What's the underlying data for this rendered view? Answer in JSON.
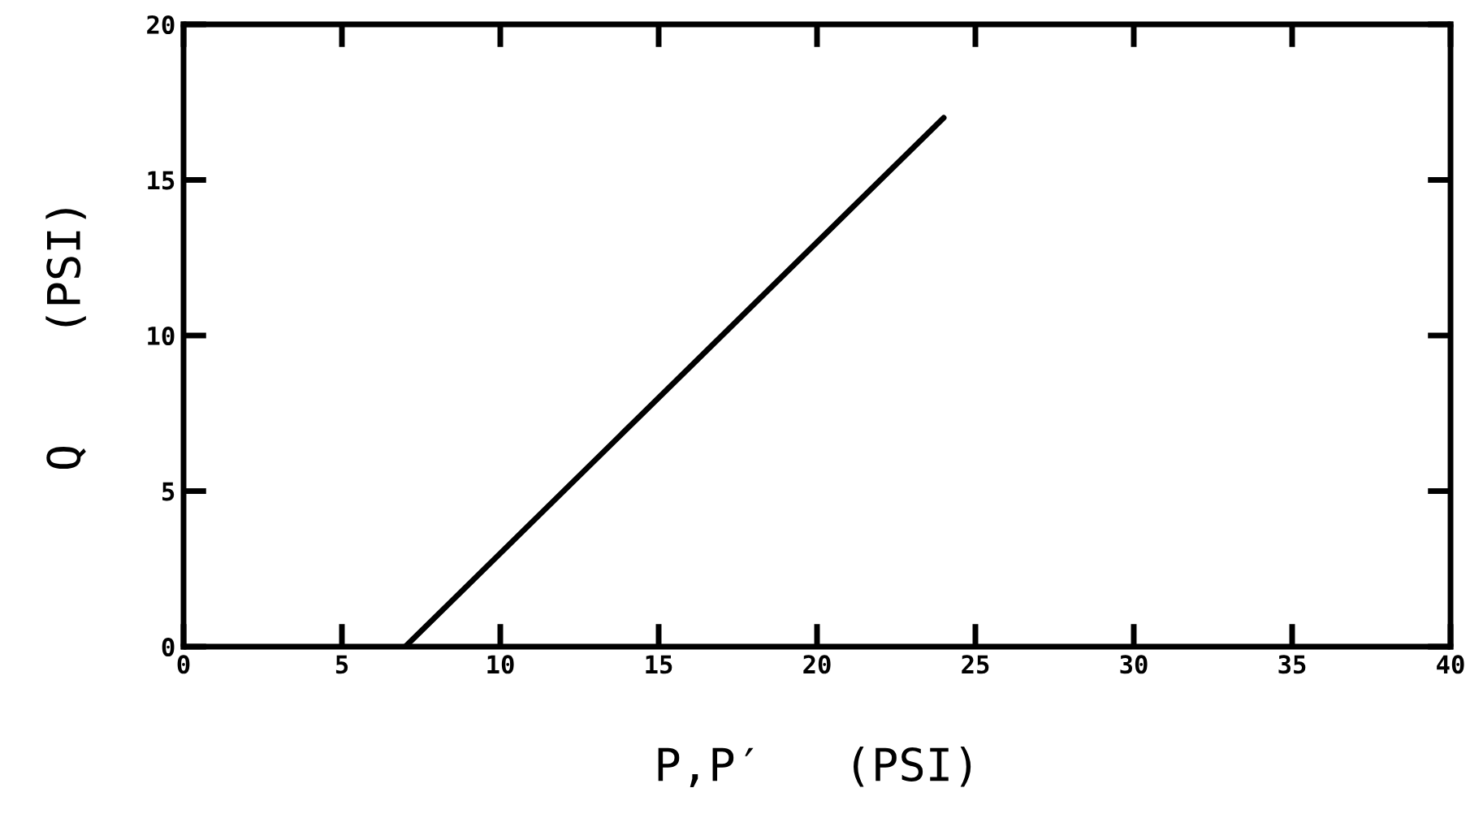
{
  "chart_data": {
    "type": "line",
    "xlabel": "P,P′   (PSI)",
    "ylabel": "Q    (PSI)",
    "series": [
      {
        "color": "#000000",
        "x": [
          7,
          24
        ],
        "values": [
          0,
          17
        ]
      }
    ],
    "xlim": [
      0,
      40
    ],
    "ylim": [
      0,
      20
    ],
    "xticks": [
      0,
      5,
      10,
      15,
      20,
      25,
      30,
      35,
      40
    ],
    "yticks": [
      0,
      5,
      10,
      15,
      20
    ],
    "grid": false,
    "legend": false,
    "marker": "none",
    "line_style": "solid"
  }
}
